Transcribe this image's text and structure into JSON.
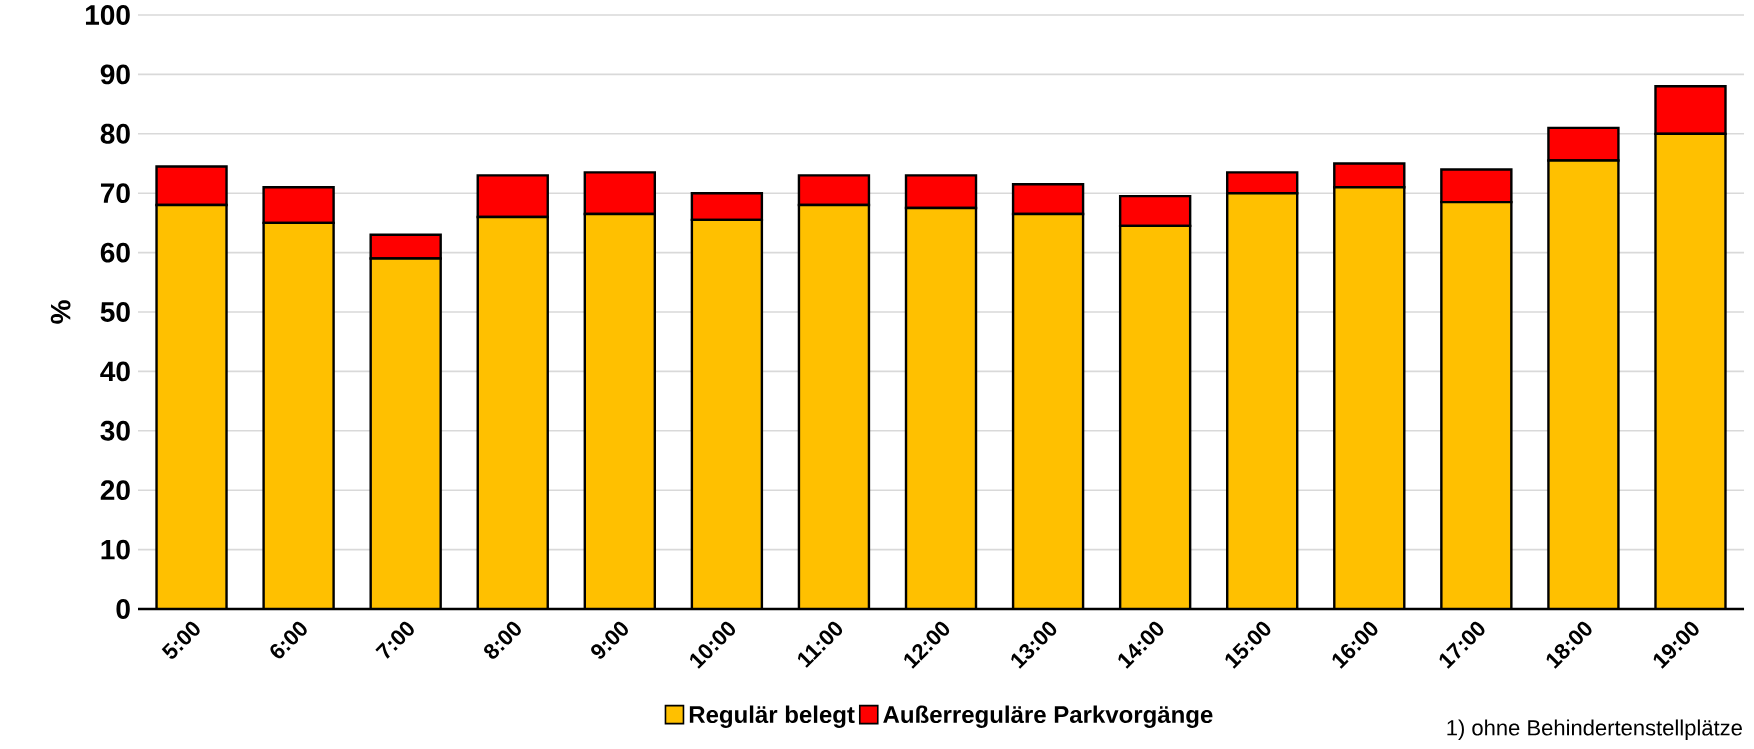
{
  "chart_data": {
    "type": "bar",
    "stacked": true,
    "ylabel": "%",
    "categories": [
      "5:00",
      "6:00",
      "7:00",
      "8:00",
      "9:00",
      "10:00",
      "11:00",
      "12:00",
      "13:00",
      "14:00",
      "15:00",
      "16:00",
      "17:00",
      "18:00",
      "19:00"
    ],
    "series": [
      {
        "name": "Regulär belegt",
        "color": "#ffc000",
        "values": [
          68,
          65,
          59,
          66,
          66.5,
          65.5,
          68,
          67.5,
          66.5,
          64.5,
          70,
          71,
          68.5,
          75.5,
          80
        ]
      },
      {
        "name": "Außerreguläre Parkvorgänge",
        "color": "#ff0000",
        "values": [
          6.5,
          6,
          4,
          7,
          7,
          4.5,
          5,
          5.5,
          5,
          5,
          3.5,
          4,
          5.5,
          5.5,
          8
        ]
      }
    ],
    "ylim": [
      0,
      100
    ],
    "yticks": [
      0,
      10,
      20,
      30,
      40,
      50,
      60,
      70,
      80,
      90,
      100
    ],
    "grid": "y",
    "legend": "bottom",
    "annotations": [
      "1) ohne Behindertenstellplätze"
    ]
  }
}
